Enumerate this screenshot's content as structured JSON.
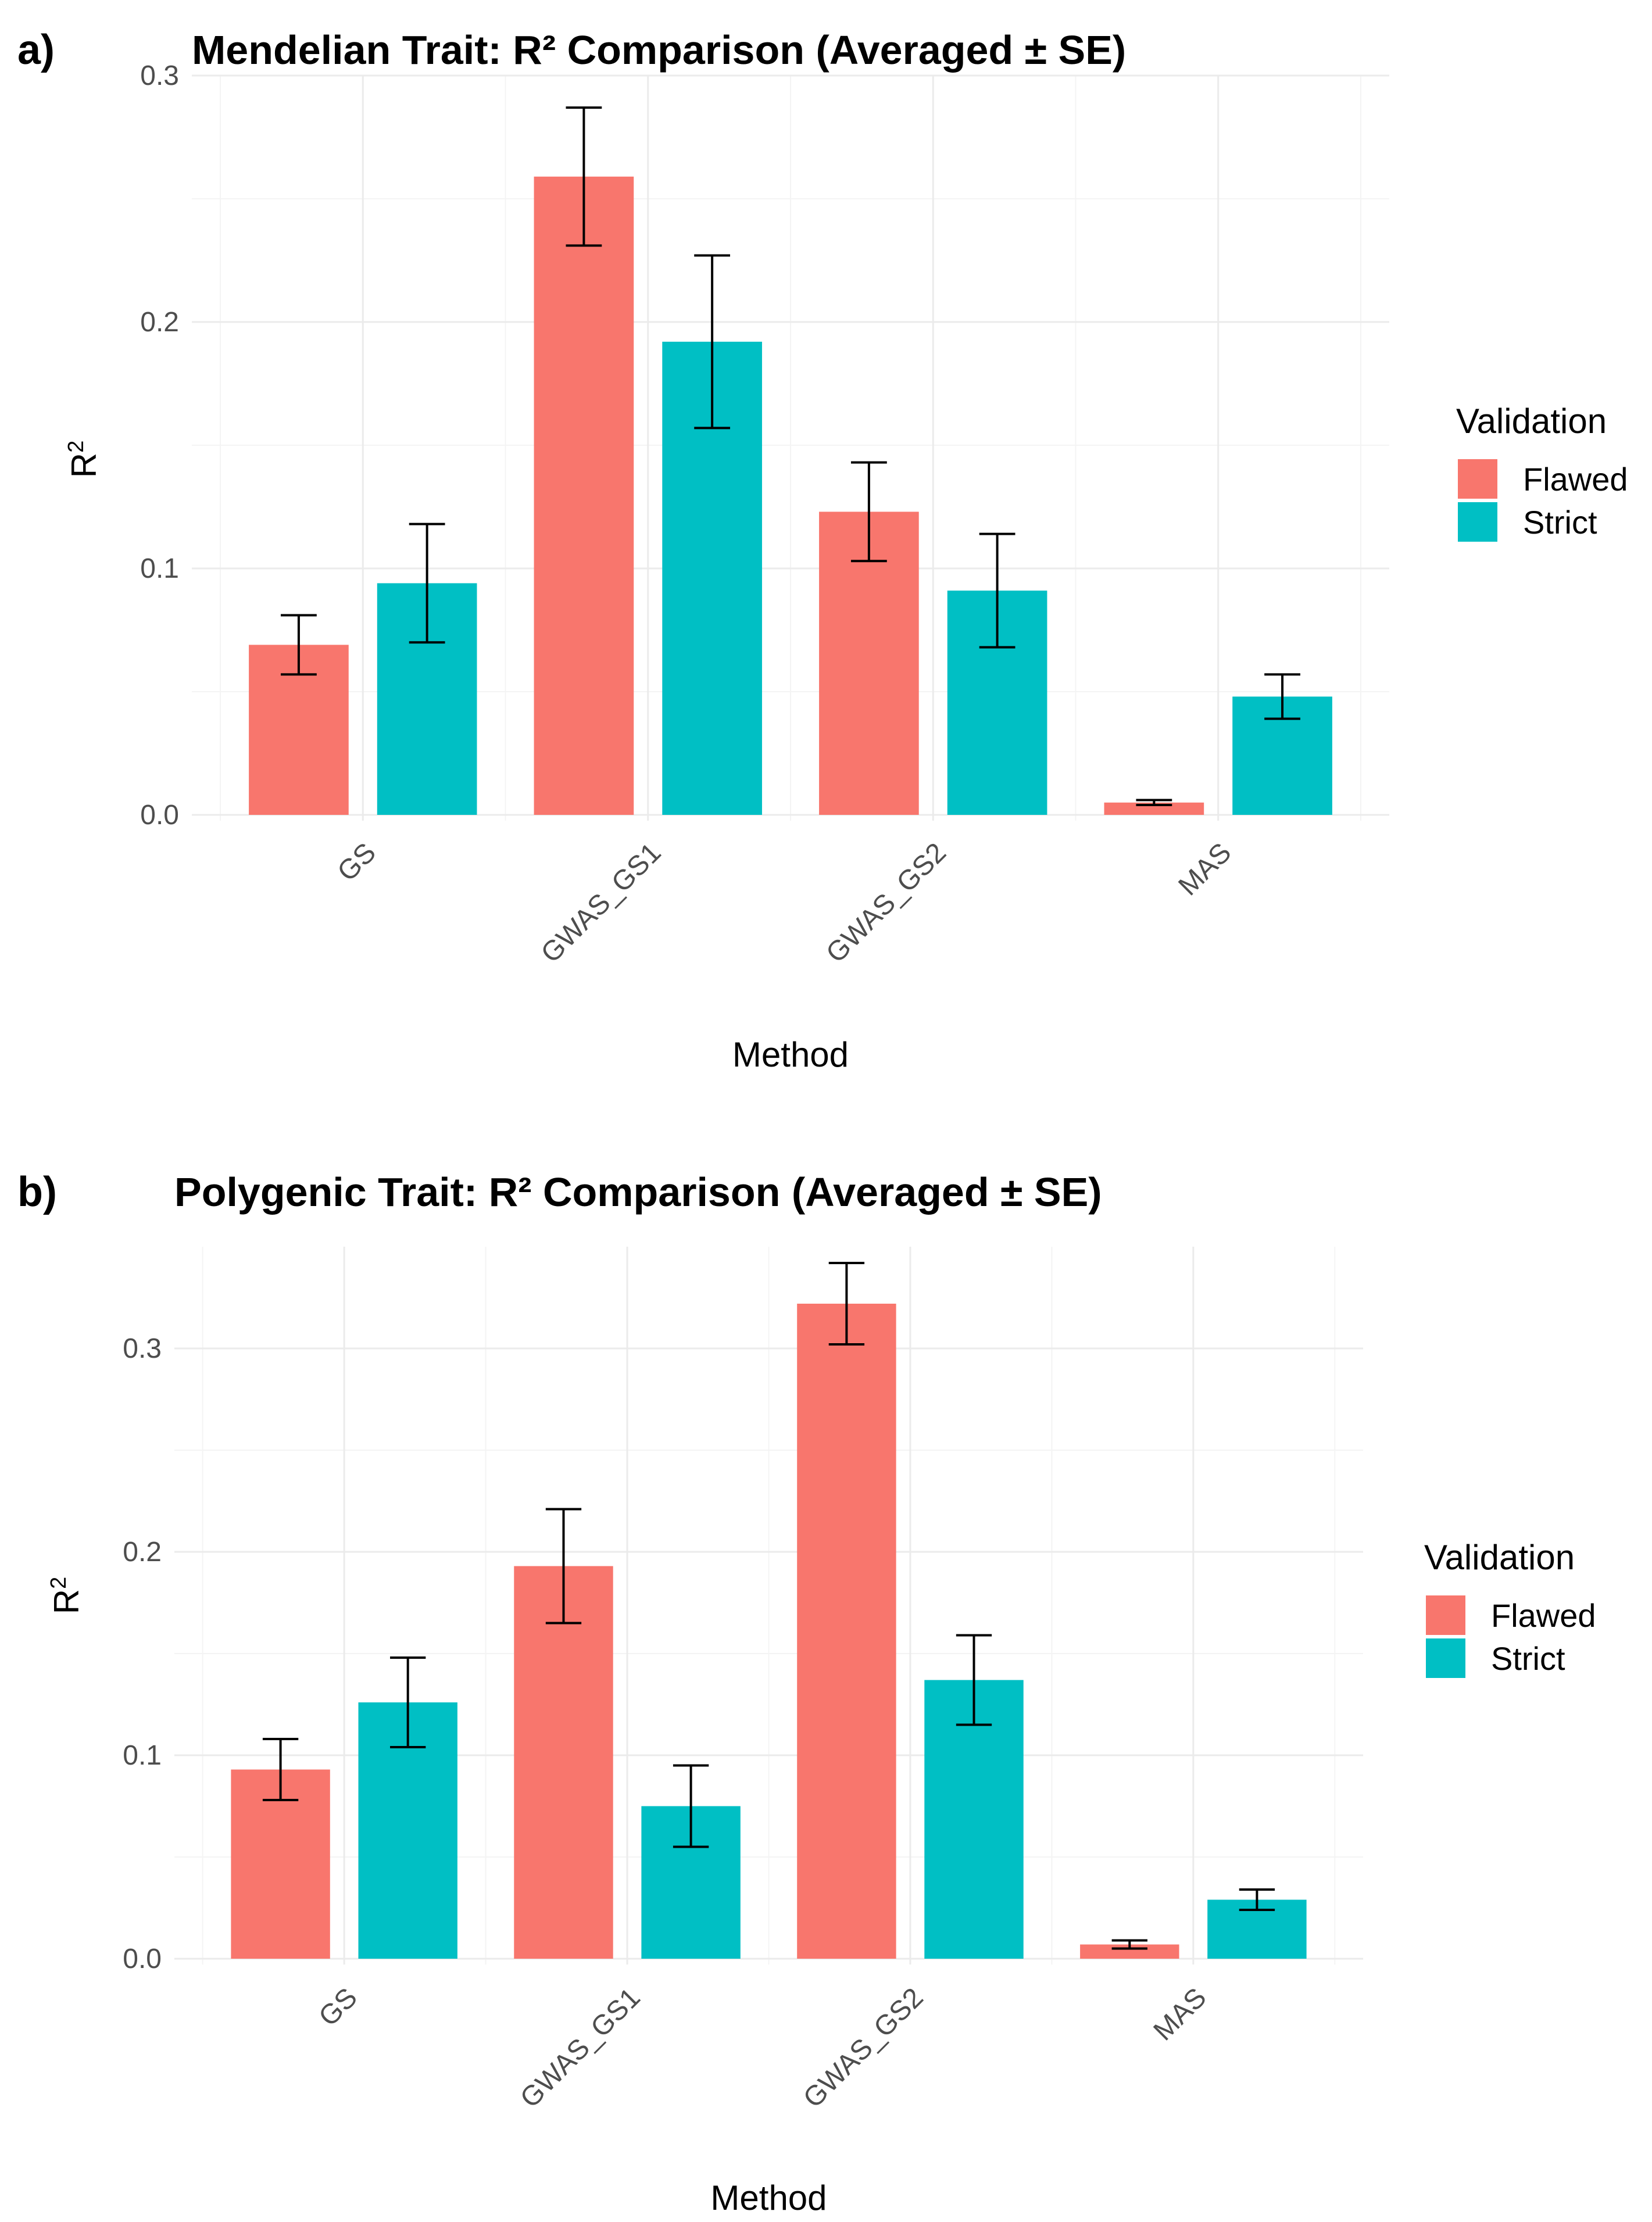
{
  "legend": {
    "title": "Validation",
    "entries": [
      {
        "name": "Flawed",
        "color": "#F8766D"
      },
      {
        "name": "Strict",
        "color": "#00BFC4"
      }
    ]
  },
  "chart_data": [
    {
      "panel": "a)",
      "type": "bar",
      "title": "Mendelian Trait: R² Comparison (Averaged ± SE)",
      "xlabel": "Method",
      "ylabel": "R",
      "ylabel_superscript": "2",
      "categories": [
        "GS",
        "GWAS_GS1",
        "GWAS_GS2",
        "MAS"
      ],
      "ylim": [
        0,
        0.3
      ],
      "yticks": [
        0.0,
        0.1,
        0.2,
        0.3
      ],
      "ytick_labels": [
        "0.0",
        "0.1",
        "0.2",
        "0.3"
      ],
      "series": [
        {
          "name": "Flawed",
          "values": [
            0.069,
            0.259,
            0.123,
            0.005
          ],
          "se": [
            0.012,
            0.028,
            0.02,
            0.001
          ]
        },
        {
          "name": "Strict",
          "values": [
            0.094,
            0.192,
            0.091,
            0.048
          ],
          "se": [
            0.024,
            0.035,
            0.023,
            0.009
          ]
        }
      ]
    },
    {
      "panel": "b)",
      "type": "bar",
      "title": "Polygenic Trait: R² Comparison (Averaged ± SE)",
      "xlabel": "Method",
      "ylabel": "R",
      "ylabel_superscript": "2",
      "categories": [
        "GS",
        "GWAS_GS1",
        "GWAS_GS2",
        "MAS"
      ],
      "ylim": [
        0,
        0.35
      ],
      "yticks": [
        0.0,
        0.1,
        0.2,
        0.3
      ],
      "ytick_labels": [
        "0.0",
        "0.1",
        "0.2",
        "0.3"
      ],
      "series": [
        {
          "name": "Flawed",
          "values": [
            0.093,
            0.193,
            0.322,
            0.007
          ],
          "se": [
            0.015,
            0.028,
            0.02,
            0.002
          ]
        },
        {
          "name": "Strict",
          "values": [
            0.126,
            0.075,
            0.137,
            0.029
          ],
          "se": [
            0.022,
            0.02,
            0.022,
            0.005
          ]
        }
      ]
    }
  ]
}
